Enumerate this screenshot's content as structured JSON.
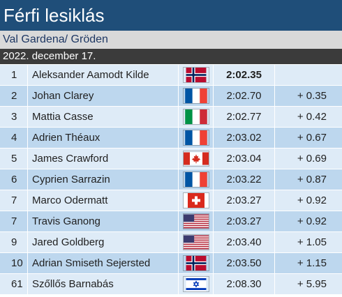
{
  "header": {
    "title": "Férfi lesiklás",
    "venue": "Val Gardena/ Gröden",
    "date": "2022. december 17."
  },
  "results": [
    {
      "rank": "1",
      "name": "Aleksander Aamodt Kilde",
      "flag": "norway-flag-icon",
      "time": "2:02.35",
      "diff": ""
    },
    {
      "rank": "2",
      "name": "Johan Clarey",
      "flag": "france-flag-icon",
      "time": "2:02.70",
      "diff": "+ 0.35"
    },
    {
      "rank": "3",
      "name": "Mattia Casse",
      "flag": "italy-flag-icon",
      "time": "2:02.77",
      "diff": "+ 0.42"
    },
    {
      "rank": "4",
      "name": "Adrien Théaux",
      "flag": "france-flag-icon",
      "time": "2:03.02",
      "diff": "+ 0.67"
    },
    {
      "rank": "5",
      "name": "James Crawford",
      "flag": "canada-flag-icon",
      "time": "2:03.04",
      "diff": "+ 0.69"
    },
    {
      "rank": "6",
      "name": "Cyprien Sarrazin",
      "flag": "france-flag-icon",
      "time": "2:03.22",
      "diff": "+ 0.87"
    },
    {
      "rank": "7",
      "name": "Marco Odermatt",
      "flag": "switzerland-flag-icon",
      "time": "2:03.27",
      "diff": "+ 0.92"
    },
    {
      "rank": "7",
      "name": "Travis Ganong",
      "flag": "usa-flag-icon",
      "time": "2:03.27",
      "diff": "+ 0.92"
    },
    {
      "rank": "9",
      "name": "Jared Goldberg",
      "flag": "usa-flag-icon",
      "time": "2:03.40",
      "diff": "+ 1.05"
    },
    {
      "rank": "10",
      "name": "Adrian Smiseth Sejersted",
      "flag": "norway-flag-icon",
      "time": "2:03.50",
      "diff": "+ 1.15"
    },
    {
      "rank": "61",
      "name": "Szőllős Barnabás",
      "flag": "israel-flag-icon",
      "time": "2:08.30",
      "diff": "+ 5.95"
    }
  ]
}
